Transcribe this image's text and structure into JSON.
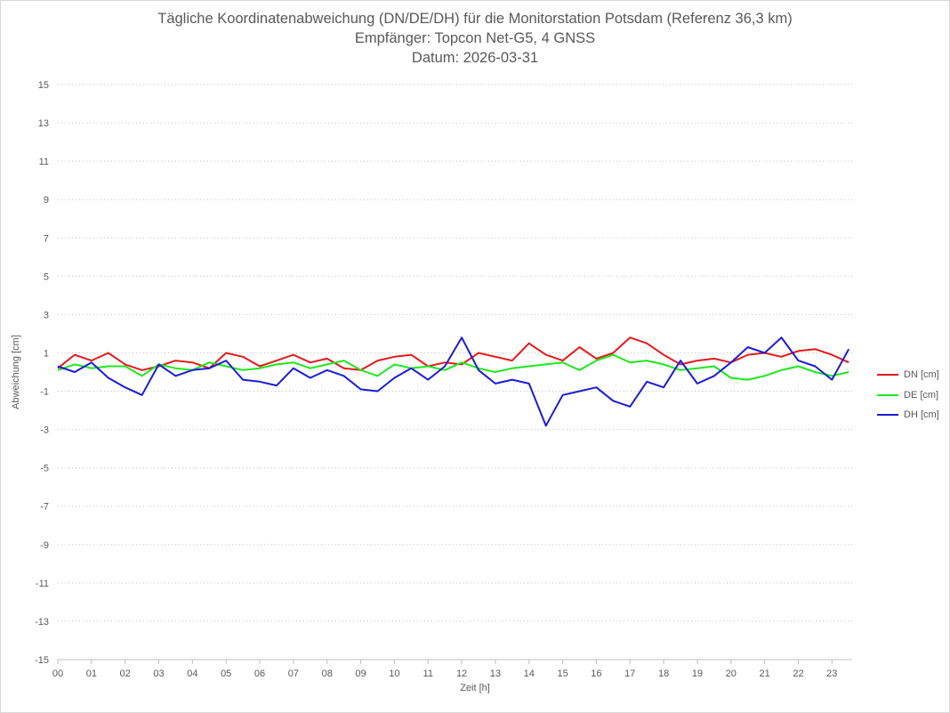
{
  "chart_data": {
    "type": "line",
    "title": "Tägliche Koordinatenabweichung (DN/DE/DH) für die Monitorstation Potsdam (Referenz 36,3 km)",
    "subtitle": "Empfänger: Topcon Net-G5, 4 GNSS",
    "date_line": "Datum: 2026-03-31",
    "xlabel": "Zeit [h]",
    "ylabel": "Abweichung [cm]",
    "xlim": [
      0,
      23.6
    ],
    "ylim": [
      -15,
      15
    ],
    "x_ticks": [
      "00",
      "01",
      "02",
      "03",
      "04",
      "05",
      "06",
      "07",
      "08",
      "09",
      "10",
      "11",
      "12",
      "13",
      "14",
      "15",
      "16",
      "17",
      "18",
      "19",
      "20",
      "21",
      "22",
      "23"
    ],
    "y_ticks": [
      15,
      13,
      11,
      9,
      7,
      5,
      3,
      1,
      -1,
      -3,
      -5,
      -7,
      -9,
      -11,
      -13,
      -15
    ],
    "grid": "horizontal-dotted",
    "legend_position": "right",
    "series": [
      {
        "name": "DN [cm]",
        "color": "#e31a1c",
        "x": [
          0,
          0.5,
          1,
          1.5,
          2,
          2.5,
          3,
          3.5,
          4,
          4.5,
          5,
          5.5,
          6,
          6.5,
          7,
          7.5,
          8,
          8.5,
          9,
          9.5,
          10,
          10.5,
          11,
          11.5,
          12,
          12.5,
          13,
          13.5,
          14,
          14.5,
          15,
          15.5,
          16,
          16.5,
          17,
          17.5,
          18,
          18.5,
          19,
          19.5,
          20,
          20.5,
          21,
          21.5,
          22,
          22.5,
          23,
          23.5
        ],
        "values": [
          0.2,
          0.9,
          0.6,
          1.0,
          0.4,
          0.1,
          0.3,
          0.6,
          0.5,
          0.2,
          1.0,
          0.8,
          0.3,
          0.6,
          0.9,
          0.5,
          0.7,
          0.2,
          0.1,
          0.6,
          0.8,
          0.9,
          0.3,
          0.5,
          0.4,
          1.0,
          0.8,
          0.6,
          1.5,
          0.9,
          0.6,
          1.3,
          0.7,
          1.0,
          1.8,
          1.5,
          0.9,
          0.4,
          0.6,
          0.7,
          0.5,
          0.9,
          1.0,
          0.8,
          1.1,
          1.2,
          0.9,
          0.5
        ]
      },
      {
        "name": "DE [cm]",
        "color": "#1ee81e",
        "x": [
          0,
          0.5,
          1,
          1.5,
          2,
          2.5,
          3,
          3.5,
          4,
          4.5,
          5,
          5.5,
          6,
          6.5,
          7,
          7.5,
          8,
          8.5,
          9,
          9.5,
          10,
          10.5,
          11,
          11.5,
          12,
          12.5,
          13,
          13.5,
          14,
          14.5,
          15,
          15.5,
          16,
          16.5,
          17,
          17.5,
          18,
          18.5,
          19,
          19.5,
          20,
          20.5,
          21,
          21.5,
          22,
          22.5,
          23,
          23.5
        ],
        "values": [
          0.1,
          0.4,
          0.2,
          0.3,
          0.3,
          -0.2,
          0.4,
          0.2,
          0.1,
          0.5,
          0.3,
          0.1,
          0.2,
          0.4,
          0.5,
          0.2,
          0.4,
          0.6,
          0.1,
          -0.2,
          0.4,
          0.2,
          0.3,
          0.1,
          0.5,
          0.2,
          0.0,
          0.2,
          0.3,
          0.4,
          0.5,
          0.1,
          0.6,
          0.9,
          0.5,
          0.6,
          0.4,
          0.1,
          0.2,
          0.3,
          -0.3,
          -0.4,
          -0.2,
          0.1,
          0.3,
          0.0,
          -0.2,
          0.0
        ]
      },
      {
        "name": "DH [cm]",
        "color": "#1c1cd4",
        "x": [
          0,
          0.5,
          1,
          1.5,
          2,
          2.5,
          3,
          3.5,
          4,
          4.5,
          5,
          5.5,
          6,
          6.5,
          7,
          7.5,
          8,
          8.5,
          9,
          9.5,
          10,
          10.5,
          11,
          11.5,
          12,
          12.5,
          13,
          13.5,
          14,
          14.5,
          15,
          15.5,
          16,
          16.5,
          17,
          17.5,
          18,
          18.5,
          19,
          19.5,
          20,
          20.5,
          21,
          21.5,
          22,
          22.5,
          23,
          23.5
        ],
        "values": [
          0.3,
          0.0,
          0.5,
          -0.3,
          -0.8,
          -1.2,
          0.4,
          -0.2,
          0.1,
          0.2,
          0.6,
          -0.4,
          -0.5,
          -0.7,
          0.2,
          -0.3,
          0.1,
          -0.2,
          -0.9,
          -1.0,
          -0.3,
          0.2,
          -0.4,
          0.3,
          1.8,
          0.1,
          -0.6,
          -0.4,
          -0.6,
          -2.8,
          -1.2,
          -1.0,
          -0.8,
          -1.5,
          -1.8,
          -0.5,
          -0.8,
          0.6,
          -0.6,
          -0.2,
          0.5,
          1.3,
          1.0,
          1.8,
          0.6,
          0.3,
          -0.4,
          1.2
        ]
      }
    ]
  }
}
